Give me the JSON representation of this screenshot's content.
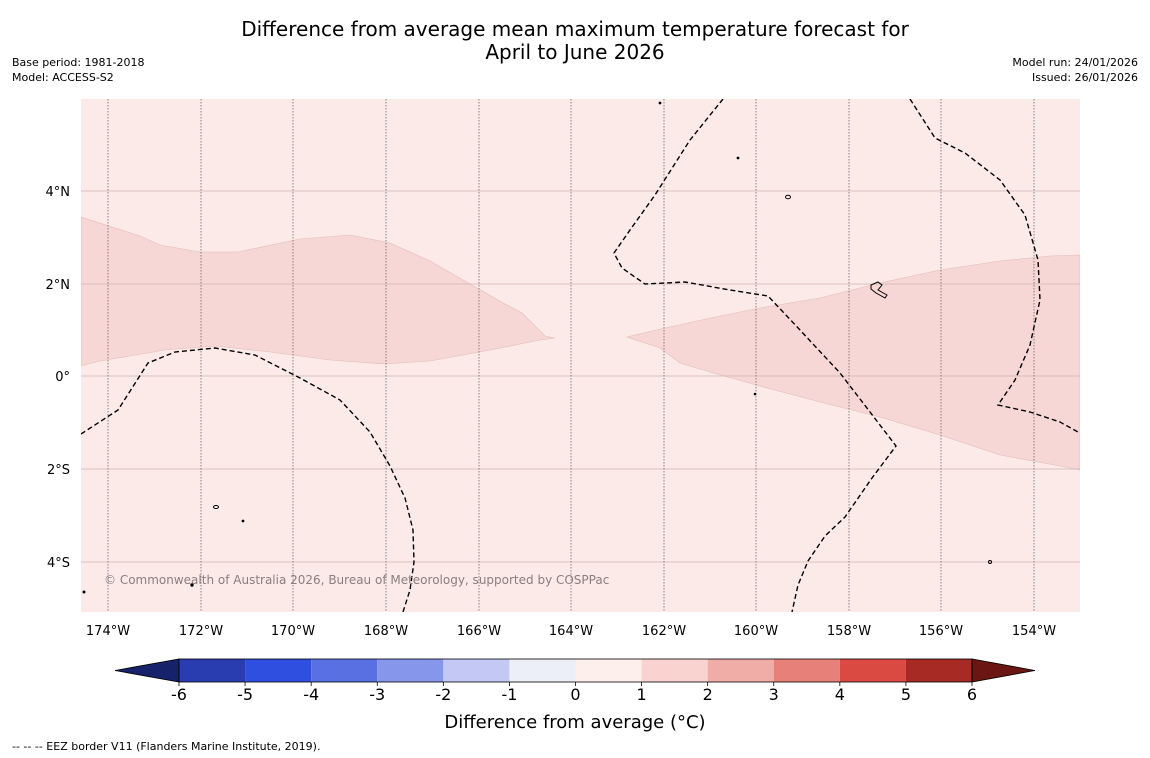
{
  "header": {
    "title_line1": "Difference from average mean maximum temperature forecast for",
    "title_line2": "April to June 2026",
    "base_period": "Base period: 1981-2018",
    "model": "Model: ACCESS-S2",
    "model_run": "Model run: 24/01/2026",
    "issued": "Issued: 26/01/2026"
  },
  "map": {
    "copyright": "© Commonwealth of Australia 2026, Bureau of Meteorology, supported by COSPPac",
    "lat_labels": [
      "4°N",
      "2°N",
      "0°",
      "2°S",
      "4°S"
    ],
    "lon_labels": [
      "174°W",
      "172°W",
      "170°W",
      "168°W",
      "166°W",
      "164°W",
      "162°W",
      "160°W",
      "158°W",
      "156°W",
      "154°W"
    ],
    "background_color": "#fbeae8",
    "anomaly_band_color": "#f6d7d5",
    "anomaly_category": "1 to 2 °C above average"
  },
  "colorbar": {
    "label": "Difference from average (°C)",
    "ticks": [
      "-6",
      "-5",
      "-4",
      "-3",
      "-2",
      "-1",
      "0",
      "1",
      "2",
      "3",
      "4",
      "5",
      "6"
    ],
    "colors": [
      "#16226a",
      "#2a3db0",
      "#2f4fe0",
      "#5870e2",
      "#8696ea",
      "#c3c9f4",
      "#eceef8",
      "#fdf0ec",
      "#f8d3cf",
      "#f0aca7",
      "#e8807a",
      "#db4a42",
      "#a82a24",
      "#6b1612"
    ]
  },
  "footnote": "--  --  -- EEZ border V11 (Flanders Marine Institute, 2019)."
}
